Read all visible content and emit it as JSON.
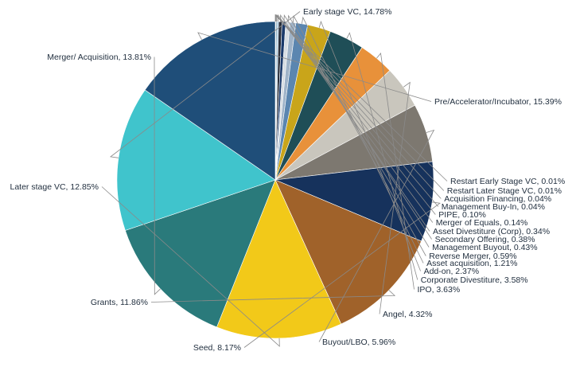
{
  "chart_data": {
    "type": "pie",
    "title": "",
    "start_angle_deg": 90,
    "direction": "clockwise",
    "slices": [
      {
        "name": "Restart Early Stage VC",
        "value": 0.01,
        "label": "Restart Early Stage VC, 0.01%",
        "color": "#2ec4d0"
      },
      {
        "name": "Restart Later Stage VC",
        "value": 0.01,
        "label": "Restart Later Stage VC, 0.01%",
        "color": "#e8b923"
      },
      {
        "name": "Acquisition Financing",
        "value": 0.04,
        "label": "Acquisition Financing, 0.04%",
        "color": "#40c4cc"
      },
      {
        "name": "Management Buy-In",
        "value": 0.04,
        "label": "Management Buy-In, 0.04%",
        "color": "#c9cfd4"
      },
      {
        "name": "PIPE",
        "value": 0.1,
        "label": "PIPE, 0.10%",
        "color": "#2e6c86"
      },
      {
        "name": "Merger of Equals",
        "value": 0.14,
        "label": "Merger of Equals, 0.14%",
        "color": "#8ab6d6"
      },
      {
        "name": "Asset Divestiture (Corp)",
        "value": 0.34,
        "label": "Asset Divestiture (Corp), 0.34%",
        "color": "#2a2f3a"
      },
      {
        "name": "Secondary Offering",
        "value": 0.38,
        "label": "Secondary Offering, 0.38%",
        "color": "#1b3a6b"
      },
      {
        "name": "Management Buyout",
        "value": 0.43,
        "label": "Management Buyout, 0.43%",
        "color": "#d7dde3"
      },
      {
        "name": "Reverse Merger",
        "value": 0.59,
        "label": "Reverse Merger, 0.59%",
        "color": "#9fb3c8"
      },
      {
        "name": "Asset acquisition",
        "value": 1.21,
        "label": "Asset acquisition, 1.21%",
        "color": "#5b86b0"
      },
      {
        "name": "Add-on",
        "value": 2.37,
        "label": "Add-on, 2.37%",
        "color": "#c9a51a"
      },
      {
        "name": "Corporate Divestiture",
        "value": 3.58,
        "label": "Corporate Divestiture, 3.58%",
        "color": "#1f4e57"
      },
      {
        "name": "IPO",
        "value": 3.63,
        "label": "IPO, 3.63%",
        "color": "#e8913a"
      },
      {
        "name": "Angel",
        "value": 4.32,
        "label": "Angel, 4.32%",
        "color": "#c9c6bd"
      },
      {
        "name": "Buyout/LBO",
        "value": 5.96,
        "label": "Buyout/LBO, 5.96%",
        "color": "#7d7870"
      },
      {
        "name": "Seed",
        "value": 8.17,
        "label": "Seed, 8.17%",
        "color": "#16325c"
      },
      {
        "name": "Grants",
        "value": 11.86,
        "label": "Grants, 11.86%",
        "color": "#a0622a"
      },
      {
        "name": "Later stage VC",
        "value": 12.85,
        "label": "Later stage VC, 12.85%",
        "color": "#f2c919"
      },
      {
        "name": "Merger/ Acquisition",
        "value": 13.81,
        "label": "Merger/ Acquisition, 13.81%",
        "color": "#2a7a7b"
      },
      {
        "name": "Early stage VC",
        "value": 14.78,
        "label": "Early stage VC, 14.78%",
        "color": "#40c4cc"
      },
      {
        "name": "Pre/Accelerator/Incubator",
        "value": 15.39,
        "label": "Pre/Accelerator/Incubator, 15.39%",
        "color": "#1f4e79"
      }
    ]
  }
}
